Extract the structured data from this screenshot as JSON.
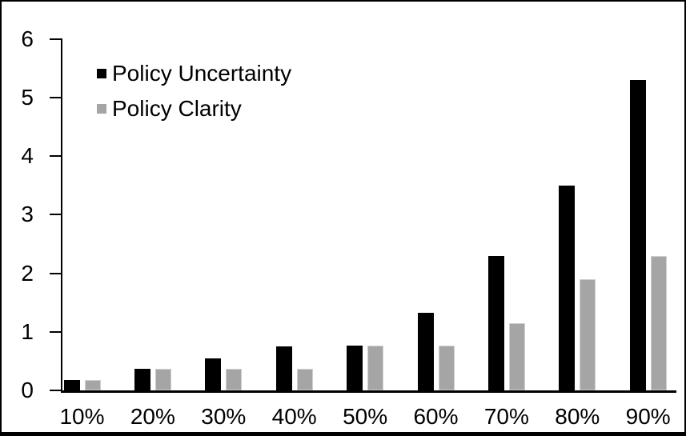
{
  "figure": {
    "background": "#ffffff",
    "border_color": "#000000"
  },
  "colors": {
    "series_uncertainty": "#000000",
    "series_clarity": "#a5a5a5",
    "axis": "#000000"
  },
  "legend": {
    "items": [
      {
        "label": "Policy Uncertainty",
        "color": "#000000"
      },
      {
        "label": "Policy Clarity",
        "color": "#a5a5a5"
      }
    ]
  },
  "chart_data": {
    "type": "bar",
    "title": "",
    "xlabel": "",
    "ylabel": "",
    "categories": [
      "10%",
      "20%",
      "30%",
      "40%",
      "50%",
      "60%",
      "70%",
      "80%",
      "90%"
    ],
    "series": [
      {
        "name": "Policy Uncertainty",
        "color": "#000000",
        "values": [
          0.18,
          0.37,
          0.55,
          0.75,
          0.77,
          1.33,
          2.3,
          3.5,
          5.3
        ]
      },
      {
        "name": "Policy Clarity",
        "color": "#a5a5a5",
        "values": [
          0.18,
          0.37,
          0.37,
          0.37,
          0.76,
          0.76,
          1.15,
          1.9,
          2.3
        ]
      }
    ],
    "ylim": [
      0,
      6
    ],
    "yticks": [
      0,
      1,
      2,
      3,
      4,
      5,
      6
    ],
    "grid": false,
    "legend_position": "upper-left-inside"
  }
}
